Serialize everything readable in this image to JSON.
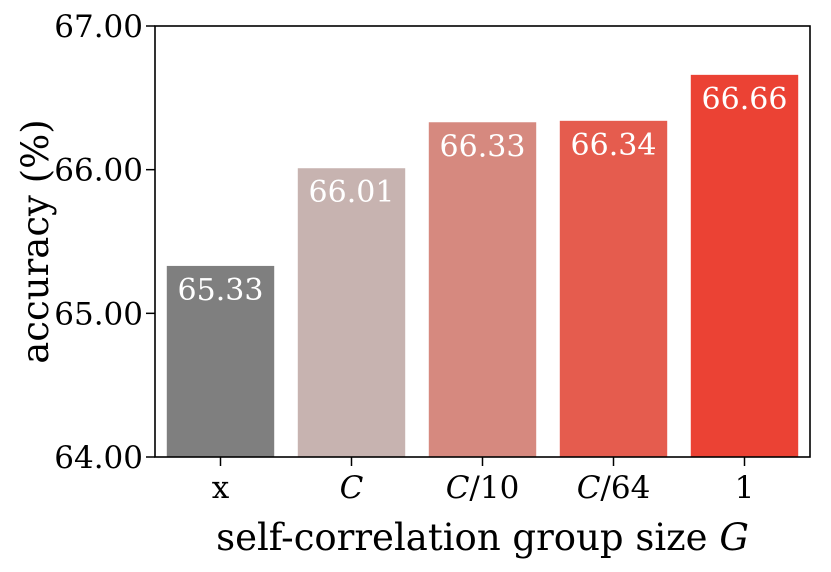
{
  "chart_data": {
    "type": "bar",
    "title": "",
    "xlabel": "self-correlation group size G",
    "ylabel": "accuracy (%)",
    "categories": [
      "x",
      "C",
      "C/10",
      "C/64",
      "1"
    ],
    "values": [
      65.33,
      66.01,
      66.33,
      66.34,
      66.66
    ],
    "value_labels": [
      "65.33",
      "66.01",
      "66.33",
      "66.34",
      "66.66"
    ],
    "bar_colors": [
      "#7f7f7f",
      "#c7b3b0",
      "#d6897f",
      "#e55c4e",
      "#eb4234"
    ],
    "ylim": [
      64.0,
      67.0
    ],
    "yticks": [
      64.0,
      65.0,
      66.0,
      67.0
    ],
    "ytick_labels": [
      "64.00",
      "65.00",
      "66.00",
      "67.00"
    ],
    "grid": false,
    "legend": "none"
  }
}
